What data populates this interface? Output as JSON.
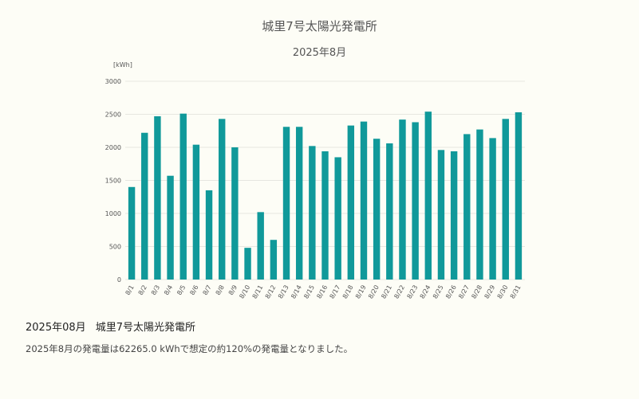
{
  "chart_data": {
    "type": "bar",
    "title": "城里7号太陽光発電所",
    "subtitle": "2025年8月",
    "ylabel": "[kWh]",
    "xlabel": "",
    "ylim": [
      0,
      3000
    ],
    "yticks": [
      0,
      500,
      1000,
      1500,
      2000,
      2500,
      3000
    ],
    "grid": true,
    "bar_color": "#10999a",
    "categories": [
      "8/1",
      "8/2",
      "8/3",
      "8/4",
      "8/5",
      "8/6",
      "8/7",
      "8/8",
      "8/9",
      "8/10",
      "8/11",
      "8/12",
      "8/13",
      "8/14",
      "8/15",
      "8/16",
      "8/17",
      "8/18",
      "8/19",
      "8/20",
      "8/21",
      "8/22",
      "8/23",
      "8/24",
      "8/25",
      "8/26",
      "8/27",
      "8/28",
      "8/29",
      "8/30",
      "8/31"
    ],
    "values": [
      1400,
      2220,
      2470,
      1570,
      2510,
      2040,
      1350,
      2430,
      2000,
      480,
      1020,
      600,
      2310,
      2310,
      2020,
      1940,
      1850,
      2330,
      2390,
      2130,
      2060,
      2420,
      2380,
      2540,
      1960,
      1940,
      2200,
      2270,
      2140,
      2430,
      2530
    ]
  },
  "report": {
    "month": "2025年08月",
    "station": "城里7号太陽光発電所",
    "summary": "2025年8月の発電量は62265.0 kWhで想定の約120%の発電量となりました。"
  }
}
